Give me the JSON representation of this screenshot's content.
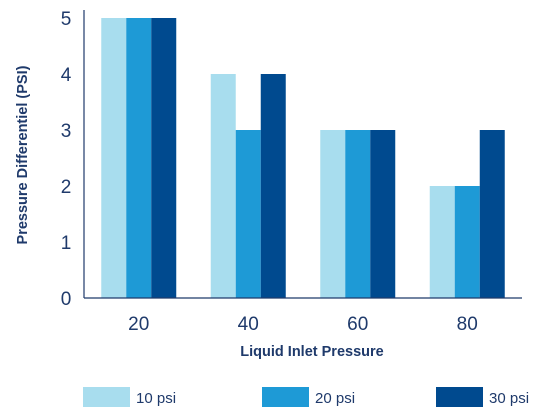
{
  "chart_data": {
    "type": "bar",
    "categories": [
      "20",
      "40",
      "60",
      "80"
    ],
    "series": [
      {
        "name": "10 psi",
        "values": [
          5,
          4,
          3,
          2
        ],
        "color": "#a8ddee"
      },
      {
        "name": "20 psi",
        "values": [
          5,
          3,
          3,
          2
        ],
        "color": "#1e9ad6"
      },
      {
        "name": "30 psi",
        "values": [
          5,
          4,
          3,
          3
        ],
        "color": "#004a8f"
      }
    ],
    "title": "",
    "xlabel": "Liquid Inlet Pressure",
    "ylabel": "Pressure Differentiel (PSI)",
    "ylim": [
      0,
      5
    ],
    "yticks": [
      0,
      1,
      2,
      3,
      4,
      5
    ],
    "grid": false,
    "legend_position": "bottom"
  }
}
